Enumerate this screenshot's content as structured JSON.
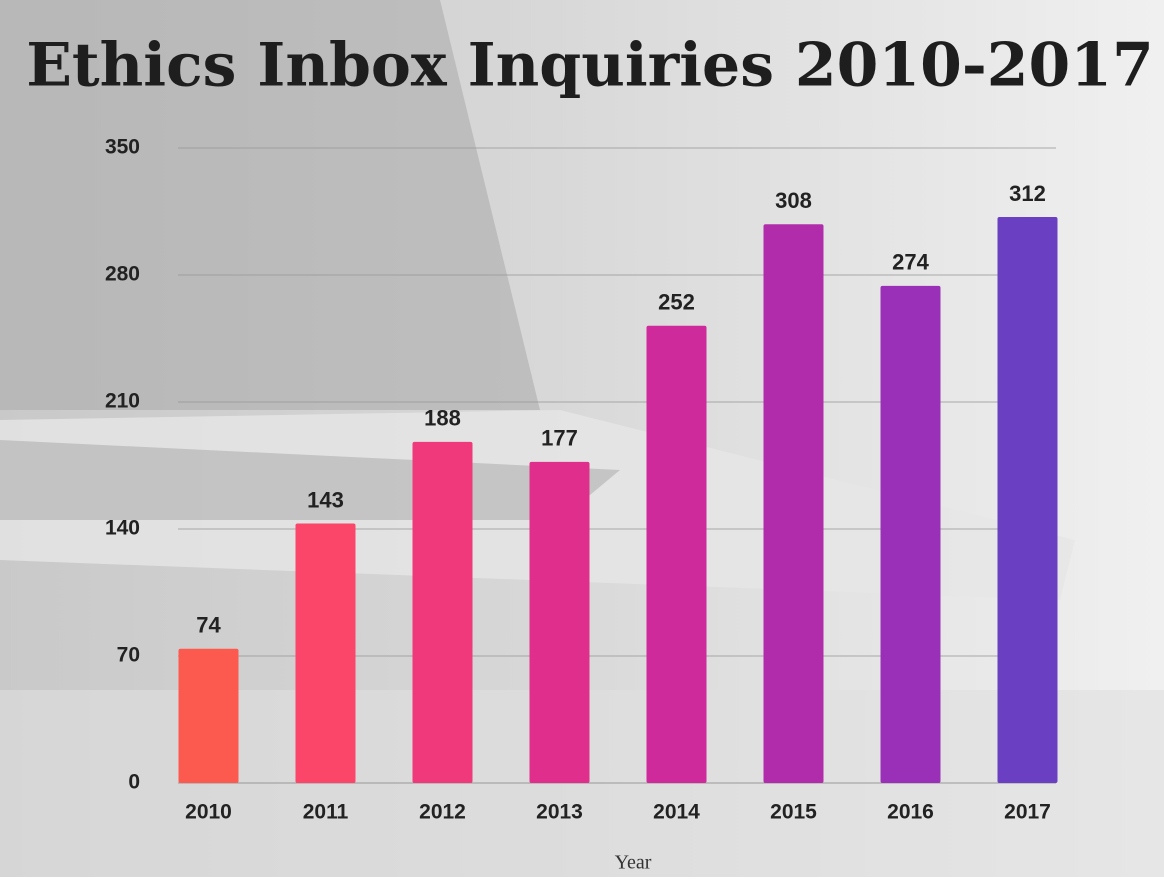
{
  "chart_data": {
    "type": "bar",
    "title": "Ethics Inbox Inquiries 2010-2017",
    "x_label": "Year",
    "categories": [
      "2010",
      "2011",
      "2012",
      "2013",
      "2014",
      "2015",
      "2016",
      "2017"
    ],
    "values": [
      74,
      143,
      188,
      177,
      252,
      308,
      274,
      312
    ],
    "colors": [
      "#fd5a4f",
      "#fb4569",
      "#f0397a",
      "#e02e8c",
      "#cf2a9c",
      "#b12cab",
      "#9a30b8",
      "#6a3fc2"
    ],
    "ylim": [
      0,
      350
    ],
    "yticks": [
      0,
      70,
      140,
      210,
      280,
      350
    ],
    "grid": true
  }
}
